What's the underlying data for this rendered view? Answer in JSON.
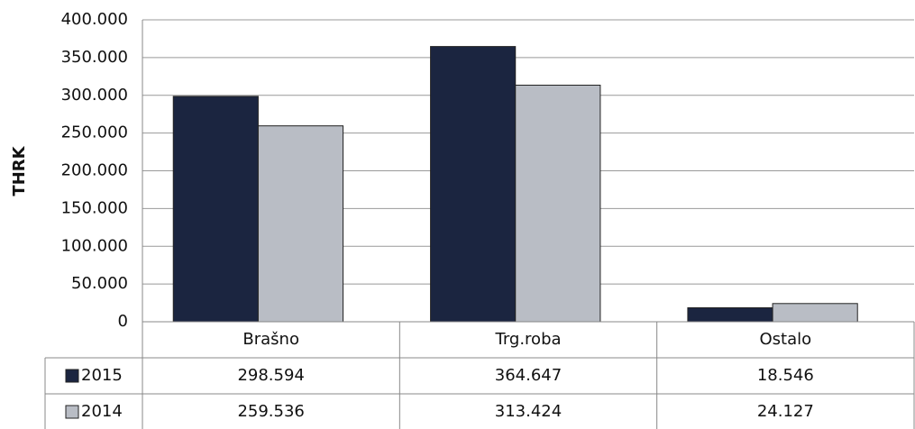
{
  "chart_data": {
    "type": "bar",
    "y_label": "THRK",
    "categories": [
      "Brašno",
      "Trg.roba",
      "Ostalo"
    ],
    "series": [
      {
        "name": "2015",
        "color": "#1b2540",
        "values": [
          298594,
          364647,
          18546
        ],
        "value_labels": [
          "298.594",
          "364.647",
          "18.546"
        ]
      },
      {
        "name": "2014",
        "color": "#b9bdc5",
        "values": [
          259536,
          313424,
          24127
        ],
        "value_labels": [
          "259.536",
          "313.424",
          "24.127"
        ]
      }
    ],
    "ylim": [
      0,
      400000
    ],
    "yticks": [
      0,
      {
        "value": 50000,
        "label": "50.000"
      },
      {
        "value": 100000,
        "label": "100.000"
      },
      {
        "value": 150000,
        "label": "150.000"
      },
      {
        "value": 200000,
        "label": "200.000"
      },
      {
        "value": 250000,
        "label": "250.000"
      },
      {
        "value": 300000,
        "label": "300.000"
      },
      {
        "value": 350000,
        "label": "350.000"
      },
      {
        "value": 400000,
        "label": "400.000"
      }
    ],
    "grid": true
  }
}
